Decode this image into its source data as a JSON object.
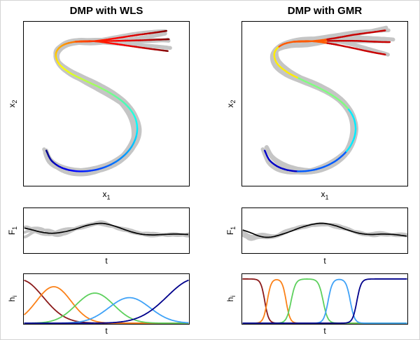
{
  "figure": {
    "background": "#ffffff",
    "frame": "#d4d4d4",
    "axis": "#000000",
    "demo": "#c5c5c5",
    "line": "#000000"
  },
  "chart_data": [
    {
      "key": "wls",
      "title": "DMP with WLS",
      "trajectory": {
        "type": "trajectory",
        "style": "smooth",
        "colormap": "jet",
        "demos": 5,
        "seed": 3,
        "split": 0.8,
        "xlabel": {
          "base": "x",
          "sub": "1"
        },
        "ylabel": {
          "base": "x",
          "sub": "2"
        },
        "trunk": [
          [
            0.13,
            0.21
          ],
          [
            0.16,
            0.15
          ],
          [
            0.215,
            0.108
          ],
          [
            0.29,
            0.085
          ],
          [
            0.38,
            0.082
          ],
          [
            0.47,
            0.1
          ],
          [
            0.555,
            0.138
          ],
          [
            0.625,
            0.195
          ],
          [
            0.672,
            0.265
          ],
          [
            0.69,
            0.345
          ],
          [
            0.672,
            0.425
          ],
          [
            0.62,
            0.495
          ],
          [
            0.545,
            0.553
          ],
          [
            0.455,
            0.603
          ],
          [
            0.36,
            0.648
          ],
          [
            0.27,
            0.695
          ],
          [
            0.205,
            0.752
          ],
          [
            0.19,
            0.815
          ],
          [
            0.23,
            0.862
          ],
          [
            0.31,
            0.885
          ],
          [
            0.42,
            0.888
          ]
        ],
        "branches": [
          [
            [
              0.55,
              0.905
            ],
            [
              0.68,
              0.925
            ],
            [
              0.79,
              0.94
            ],
            [
              0.87,
              0.952
            ]
          ],
          [
            [
              0.555,
              0.89
            ],
            [
              0.69,
              0.893
            ],
            [
              0.8,
              0.897
            ],
            [
              0.885,
              0.9
            ]
          ],
          [
            [
              0.55,
              0.872
            ],
            [
              0.68,
              0.853
            ],
            [
              0.79,
              0.838
            ],
            [
              0.878,
              0.827
            ]
          ]
        ]
      },
      "force": {
        "type": "line",
        "noise_seed": 5,
        "xlabel": {
          "base": "t",
          "sub": ""
        },
        "ylabel": {
          "base": "F",
          "sub": "1"
        },
        "points": [
          [
            0.0,
            0.6
          ],
          [
            0.05,
            0.55
          ],
          [
            0.1,
            0.5
          ],
          [
            0.16,
            0.47
          ],
          [
            0.22,
            0.49
          ],
          [
            0.3,
            0.56
          ],
          [
            0.38,
            0.66
          ],
          [
            0.45,
            0.71
          ],
          [
            0.5,
            0.7
          ],
          [
            0.57,
            0.62
          ],
          [
            0.64,
            0.52
          ],
          [
            0.71,
            0.45
          ],
          [
            0.78,
            0.43
          ],
          [
            0.85,
            0.44
          ],
          [
            0.92,
            0.45
          ],
          [
            1.0,
            0.44
          ]
        ]
      },
      "basis": {
        "type": "basis",
        "xlabel": {
          "base": "t",
          "sub": ""
        },
        "ylabel": {
          "base": "h",
          "sub": "i"
        },
        "series": [
          {
            "name": "basis-1",
            "color": "#8B1A1A",
            "shape": "gauss",
            "c": -0.02,
            "w": 0.135,
            "a": 0.95
          },
          {
            "name": "basis-2",
            "color": "#FB8118",
            "shape": "gauss",
            "c": 0.18,
            "w": 0.105,
            "a": 0.8
          },
          {
            "name": "basis-3",
            "color": "#5DD05D",
            "shape": "gauss",
            "c": 0.43,
            "w": 0.115,
            "a": 0.66
          },
          {
            "name": "basis-4",
            "color": "#3FA2F7",
            "shape": "gauss",
            "c": 0.64,
            "w": 0.125,
            "a": 0.56
          },
          {
            "name": "basis-5",
            "color": "#00008B",
            "shape": "gauss",
            "c": 1.04,
            "w": 0.17,
            "a": 0.97
          }
        ]
      }
    },
    {
      "key": "gmr",
      "title": "DMP with GMR",
      "trajectory": {
        "type": "trajectory",
        "style": "banded",
        "colormap": "jet",
        "demos": 5,
        "seed": 9,
        "split": 0.8,
        "xlabel": {
          "base": "x",
          "sub": "1"
        },
        "ylabel": {
          "base": "x",
          "sub": "2"
        },
        "trunk": [
          [
            0.13,
            0.21
          ],
          [
            0.16,
            0.15
          ],
          [
            0.215,
            0.108
          ],
          [
            0.29,
            0.085
          ],
          [
            0.38,
            0.082
          ],
          [
            0.47,
            0.1
          ],
          [
            0.555,
            0.138
          ],
          [
            0.625,
            0.195
          ],
          [
            0.672,
            0.265
          ],
          [
            0.69,
            0.345
          ],
          [
            0.672,
            0.425
          ],
          [
            0.62,
            0.495
          ],
          [
            0.545,
            0.553
          ],
          [
            0.455,
            0.603
          ],
          [
            0.36,
            0.648
          ],
          [
            0.27,
            0.695
          ],
          [
            0.205,
            0.752
          ],
          [
            0.19,
            0.815
          ],
          [
            0.23,
            0.862
          ],
          [
            0.31,
            0.885
          ],
          [
            0.42,
            0.888
          ]
        ],
        "branches": [
          [
            [
              0.55,
              0.905
            ],
            [
              0.68,
              0.928
            ],
            [
              0.79,
              0.943
            ],
            [
              0.872,
              0.955
            ]
          ],
          [
            [
              0.555,
              0.89
            ],
            [
              0.69,
              0.89
            ],
            [
              0.8,
              0.885
            ],
            [
              0.9,
              0.882
            ]
          ],
          [
            [
              0.55,
              0.87
            ],
            [
              0.67,
              0.846
            ],
            [
              0.78,
              0.822
            ],
            [
              0.872,
              0.805
            ]
          ]
        ]
      },
      "force": {
        "type": "line",
        "noise_seed": 11,
        "xlabel": {
          "base": "t",
          "sub": ""
        },
        "ylabel": {
          "base": "F",
          "sub": "1"
        },
        "points": [
          [
            0.0,
            0.55
          ],
          [
            0.05,
            0.48
          ],
          [
            0.1,
            0.4
          ],
          [
            0.15,
            0.37
          ],
          [
            0.2,
            0.4
          ],
          [
            0.28,
            0.5
          ],
          [
            0.36,
            0.62
          ],
          [
            0.44,
            0.7
          ],
          [
            0.5,
            0.71
          ],
          [
            0.57,
            0.65
          ],
          [
            0.64,
            0.55
          ],
          [
            0.71,
            0.47
          ],
          [
            0.78,
            0.44
          ],
          [
            0.85,
            0.45
          ],
          [
            0.92,
            0.44
          ],
          [
            1.0,
            0.4
          ]
        ]
      },
      "basis": {
        "type": "basis",
        "xlabel": {
          "base": "t",
          "sub": ""
        },
        "ylabel": {
          "base": "h",
          "sub": "i"
        },
        "series": [
          {
            "name": "basis-1",
            "color": "#8B1A1A",
            "shape": "plateau",
            "r1": -1,
            "r2": 0.135,
            "s": 0.012,
            "a": 0.97
          },
          {
            "name": "basis-2",
            "color": "#FB8118",
            "shape": "plateau",
            "r1": 0.15,
            "r2": 0.265,
            "s": 0.012,
            "a": 0.97
          },
          {
            "name": "basis-3",
            "color": "#5DD05D",
            "shape": "plateau",
            "r1": 0.295,
            "r2": 0.49,
            "s": 0.014,
            "a": 0.97
          },
          {
            "name": "basis-4",
            "color": "#3FA2F7",
            "shape": "plateau",
            "r1": 0.52,
            "r2": 0.655,
            "s": 0.013,
            "a": 0.97
          },
          {
            "name": "basis-5",
            "color": "#00008B",
            "shape": "plateau",
            "r1": 0.695,
            "r2": 2,
            "s": 0.013,
            "a": 0.97
          }
        ]
      }
    }
  ]
}
